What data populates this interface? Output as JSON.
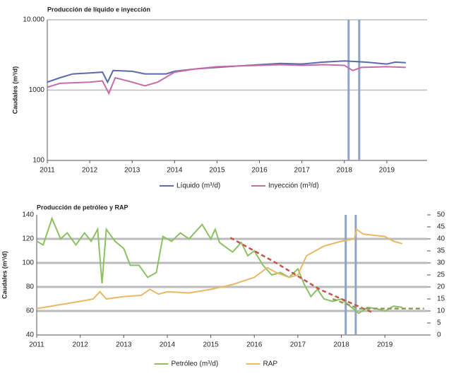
{
  "chart_data": [
    {
      "type": "line",
      "title": "Producción de líquido e inyección",
      "y_label": "Caudales (m³/d)",
      "log_scale": true,
      "xlim": [
        2011,
        2019.95
      ],
      "xticks": [
        2011,
        2012,
        2013,
        2014,
        2015,
        2016,
        2017,
        2018,
        2019
      ],
      "ylim": [
        100,
        10000
      ],
      "yticks": [
        100,
        1000,
        {
          "value": 10000,
          "label": "10.000"
        }
      ],
      "grid": true,
      "vlines": [
        2018.1,
        2018.35
      ],
      "series": [
        {
          "name": "Líquido (m³/d)",
          "color": "#5b6aaa",
          "x": [
            2011,
            2011.3,
            2011.6,
            2012,
            2012.3,
            2012.42,
            2012.55,
            2013,
            2013.3,
            2013.8,
            2014,
            2014.5,
            2015,
            2015.5,
            2016,
            2016.5,
            2017,
            2017.5,
            2018,
            2018.5,
            2019,
            2019.2,
            2019.45
          ],
          "values": [
            1300,
            1500,
            1700,
            1750,
            1800,
            1300,
            1900,
            1850,
            1700,
            1700,
            1850,
            2000,
            2100,
            2200,
            2300,
            2400,
            2350,
            2500,
            2600,
            2500,
            2350,
            2500,
            2450
          ]
        },
        {
          "name": "Inyección (m³/d)",
          "color": "#c76aa8",
          "x": [
            2011,
            2011.3,
            2012,
            2012.3,
            2012.45,
            2012.6,
            2013,
            2013.3,
            2013.6,
            2014,
            2014.5,
            2015,
            2015.5,
            2016,
            2016.5,
            2017,
            2017.5,
            2018,
            2018.2,
            2018.4,
            2019,
            2019.45
          ],
          "values": [
            1100,
            1250,
            1300,
            1350,
            900,
            1500,
            1300,
            1150,
            1300,
            1800,
            2000,
            2150,
            2200,
            2250,
            2300,
            2250,
            2300,
            2250,
            1900,
            2100,
            2150,
            2100
          ]
        }
      ]
    },
    {
      "type": "line",
      "title": "Producción de petróleo y RAP",
      "y_label": "Caudales (m³/d)",
      "log_scale": false,
      "xlim": [
        2011,
        2019.97
      ],
      "xticks": [
        2011,
        2012,
        2013,
        2014,
        2015,
        2016,
        2017,
        2018,
        2019
      ],
      "ylim": [
        40,
        140
      ],
      "yticks": [
        40,
        60,
        80,
        100,
        120,
        140
      ],
      "y2lim": [
        0,
        50
      ],
      "y2ticks": [
        0,
        5,
        10,
        15,
        20,
        25,
        30,
        35,
        40,
        45,
        50
      ],
      "grid": true,
      "vlines": [
        2018.1,
        2018.33
      ],
      "series": [
        {
          "name": "Petróleo (m³/d)",
          "color": "#8cc063",
          "x": [
            2011,
            2011.15,
            2011.35,
            2011.55,
            2011.7,
            2011.9,
            2012.1,
            2012.25,
            2012.4,
            2012.5,
            2012.6,
            2012.8,
            2013,
            2013.15,
            2013.35,
            2013.55,
            2013.75,
            2013.9,
            2014.1,
            2014.3,
            2014.5,
            2014.8,
            2015,
            2015.1,
            2015.2,
            2015.5,
            2015.7,
            2015.85,
            2016,
            2016.2,
            2016.4,
            2016.6,
            2016.8,
            2017,
            2017.15,
            2017.3,
            2017.45,
            2017.6,
            2017.8,
            2018,
            2018.2,
            2018.4,
            2018.6,
            2018.8,
            2019,
            2019.2,
            2019.4
          ],
          "values": [
            118,
            115,
            137,
            120,
            125,
            115,
            125,
            118,
            128,
            83,
            128,
            118,
            112,
            98,
            98,
            88,
            92,
            122,
            118,
            125,
            120,
            132,
            120,
            128,
            117,
            109,
            117,
            106,
            110,
            98,
            90,
            92,
            88,
            95,
            82,
            72,
            78,
            70,
            68,
            70,
            64,
            58,
            63,
            62,
            60,
            64,
            63
          ]
        },
        {
          "name": "RAP",
          "color": "#e8b964",
          "axis": "y2",
          "x": [
            2011,
            2011.5,
            2012,
            2012.3,
            2012.45,
            2012.6,
            2013,
            2013.4,
            2013.6,
            2013.8,
            2014,
            2014.5,
            2015,
            2015.5,
            2016,
            2016.3,
            2016.5,
            2016.8,
            2017,
            2017.2,
            2017.4,
            2017.6,
            2018,
            2018.3,
            2018.35,
            2018.5,
            2019,
            2019.2,
            2019.4
          ],
          "values": [
            11,
            12.5,
            14,
            15,
            18,
            15,
            16,
            16.5,
            19,
            17,
            18,
            17.5,
            19,
            21,
            24,
            28,
            26,
            24,
            25,
            33,
            35,
            37,
            39,
            40,
            44,
            42,
            41,
            39,
            38
          ]
        }
      ],
      "trend_lines": [
        {
          "color": "#c9514a",
          "x": [
            2015.45,
            2016.5,
            2017.5,
            2018.7
          ],
          "values": [
            121,
            100,
            78,
            59
          ]
        },
        {
          "color": "#8a9a5b",
          "x": [
            2017.8,
            2018.4,
            2019.9
          ],
          "values": [
            70,
            62,
            62
          ]
        }
      ]
    }
  ]
}
